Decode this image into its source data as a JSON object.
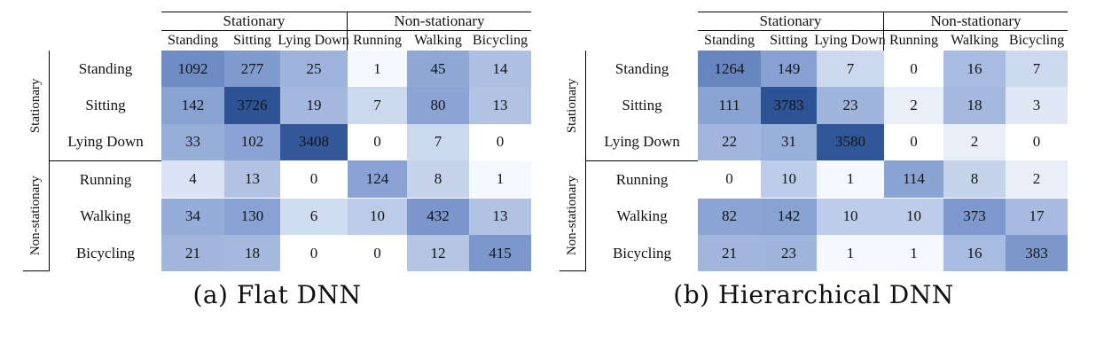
{
  "figure": {
    "background": "#ffffff",
    "text_color": "#111111"
  },
  "colors": {
    "heat_min": "#ffffff",
    "heat_mid": "#7b97cb",
    "heat_max": "#2e5395",
    "grid_line": "#000000"
  },
  "chart_data": [
    {
      "type": "heatmap",
      "caption": "(a) Flat DNN",
      "col_groups": [
        "Stationary",
        "Non-stationary"
      ],
      "row_groups": [
        "Stationary",
        "Non-stationary"
      ],
      "columns": [
        "Standing",
        "Sitting",
        "Lying Down",
        "Running",
        "Walking",
        "Bicycling"
      ],
      "rows": [
        "Standing",
        "Sitting",
        "Lying Down",
        "Running",
        "Walking",
        "Bicycling"
      ],
      "values": [
        [
          1092,
          277,
          25,
          1,
          45,
          14
        ],
        [
          142,
          3726,
          19,
          7,
          80,
          13
        ],
        [
          33,
          102,
          3408,
          0,
          7,
          0
        ],
        [
          4,
          13,
          0,
          124,
          8,
          1
        ],
        [
          34,
          130,
          6,
          10,
          432,
          13
        ],
        [
          21,
          18,
          0,
          0,
          12,
          415
        ]
      ],
      "value_max": 3726,
      "color_scale": "log",
      "legend": "none"
    },
    {
      "type": "heatmap",
      "caption": "(b) Hierarchical DNN",
      "col_groups": [
        "Stationary",
        "Non-stationary"
      ],
      "row_groups": [
        "Stationary",
        "Non-stationary"
      ],
      "columns": [
        "Standing",
        "Sitting",
        "Lying Down",
        "Running",
        "Walking",
        "Bicycling"
      ],
      "rows": [
        "Standing",
        "Sitting",
        "Lying Down",
        "Running",
        "Walking",
        "Bicycling"
      ],
      "values": [
        [
          1264,
          149,
          7,
          0,
          16,
          7
        ],
        [
          111,
          3783,
          23,
          2,
          18,
          3
        ],
        [
          22,
          31,
          3580,
          0,
          2,
          0
        ],
        [
          0,
          10,
          1,
          114,
          8,
          2
        ],
        [
          82,
          142,
          10,
          10,
          373,
          17
        ],
        [
          21,
          23,
          1,
          1,
          16,
          383
        ]
      ],
      "value_max": 3783,
      "color_scale": "log",
      "legend": "none"
    }
  ]
}
